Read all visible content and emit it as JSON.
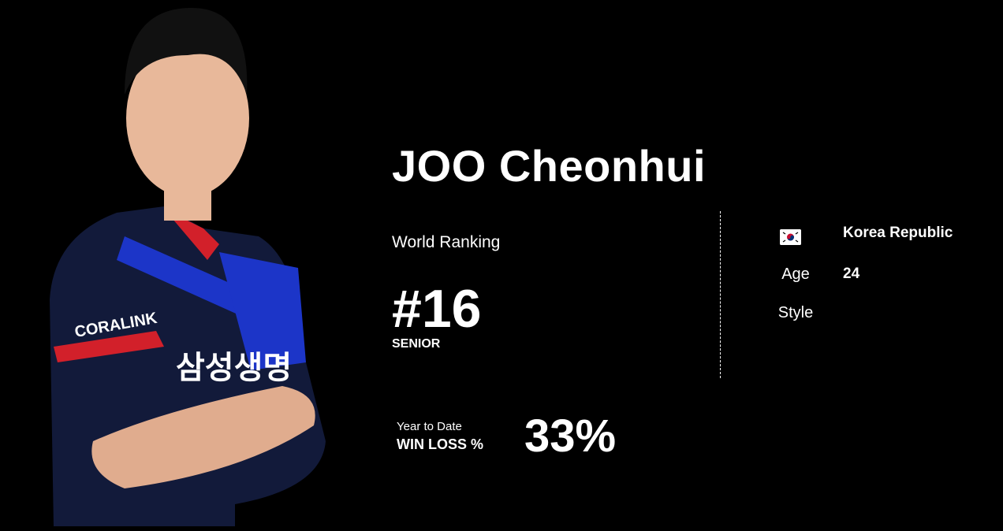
{
  "player": {
    "name": "JOO Cheonhui",
    "world_ranking_label": "World Ranking",
    "rank": "#16",
    "rank_category": "SENIOR",
    "country": "Korea Republic",
    "flag_icon": "flag-korea-icon",
    "age_label": "Age",
    "age": "24",
    "style_label": "Style",
    "ytd_label": "Year to Date",
    "win_loss_label": "WIN LOSS %",
    "win_loss": "33%"
  },
  "colors": {
    "background": "#000000",
    "text": "#ffffff",
    "jersey_blue": "#1c35c8",
    "jersey_navy": "#121a3a",
    "jersey_red": "#d2202a"
  }
}
